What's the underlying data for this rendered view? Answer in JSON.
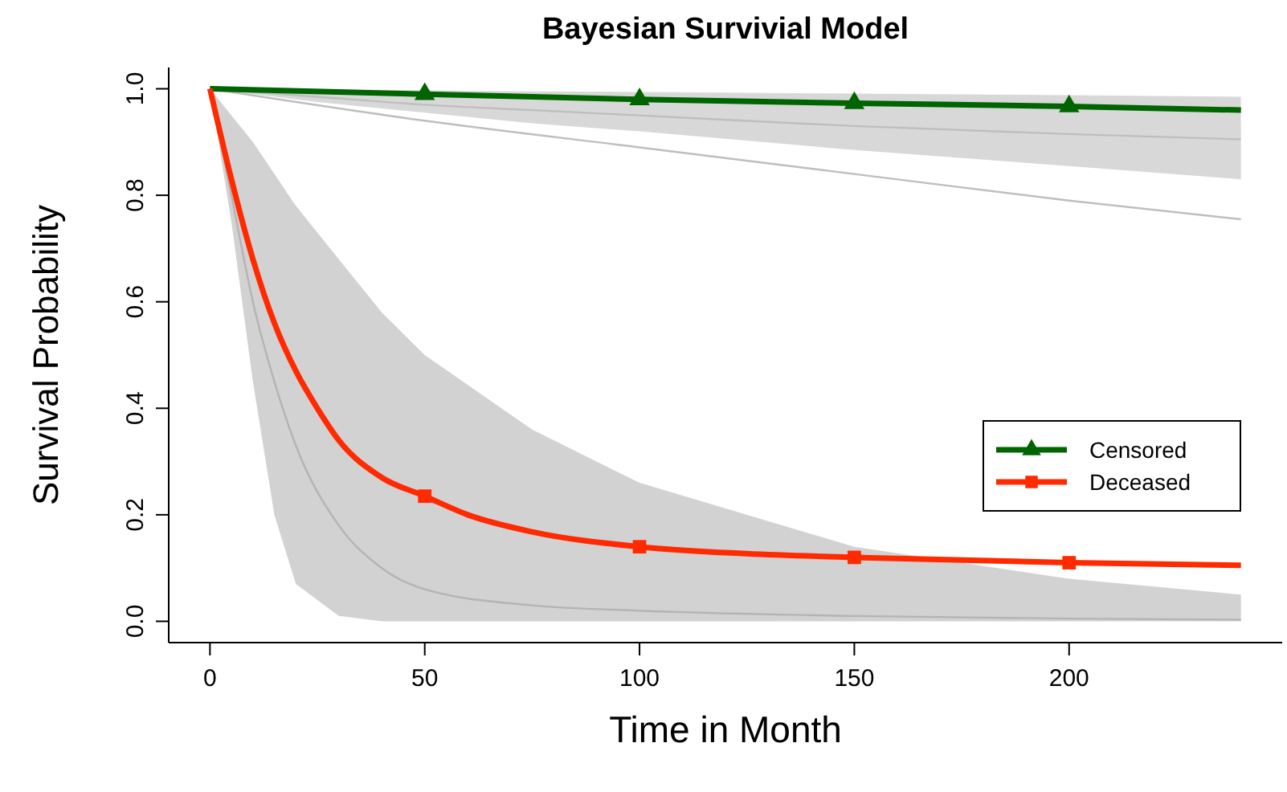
{
  "chart_data": {
    "type": "line",
    "title": "Bayesian Survivial Model",
    "xlabel": "Time in Month",
    "ylabel": "Survival Probability",
    "xlim": [
      -9.6,
      249.6
    ],
    "ylim": [
      -0.04,
      1.04
    ],
    "xticks": [
      0,
      50,
      100,
      150,
      200
    ],
    "yticks": [
      {
        "value": 0,
        "label": "0.0"
      },
      0.2,
      0.4,
      0.6,
      0.8,
      {
        "value": 1,
        "label": "1.0"
      }
    ],
    "grid": false,
    "legend": "right",
    "line_style": "solid",
    "series": [
      {
        "color": "#bebebe",
        "marker": "none",
        "x": [
          0,
          25,
          50,
          75,
          100,
          150,
          200,
          240
        ],
        "values": [
          1,
          0.985,
          0.97,
          0.96,
          0.95,
          0.93,
          0.915,
          0.905
        ],
        "lower": [
          1,
          0.975,
          0.955,
          0.935,
          0.92,
          0.885,
          0.855,
          0.83
        ],
        "upper": [
          1,
          0.998,
          0.997,
          0.995,
          0.994,
          0.991,
          0.988,
          0.985
        ]
      },
      {
        "color": "#bebebe",
        "marker": "none",
        "x": [
          0,
          50,
          100,
          150,
          200,
          240
        ],
        "values": [
          1,
          0.94,
          0.89,
          0.84,
          0.79,
          0.755
        ]
      },
      {
        "color": "#b4b4b4",
        "marker": "none",
        "x": [
          0,
          5,
          10,
          15,
          20,
          30,
          40,
          50,
          75,
          100,
          150,
          200,
          240
        ],
        "values": [
          1,
          0.8,
          0.6,
          0.45,
          0.33,
          0.18,
          0.1,
          0.06,
          0.03,
          0.02,
          0.01,
          0.005,
          0.003
        ],
        "lower": [
          1,
          0.75,
          0.45,
          0.2,
          0.07,
          0.01,
          0,
          0,
          0,
          0,
          0,
          0,
          0
        ],
        "upper": [
          1,
          0.95,
          0.9,
          0.84,
          0.78,
          0.68,
          0.58,
          0.5,
          0.36,
          0.26,
          0.14,
          0.08,
          0.05
        ]
      },
      {
        "name": "Censored",
        "color": "#006400",
        "marker": "none",
        "x": [
          0,
          50,
          100,
          150,
          200,
          240
        ],
        "values": [
          1,
          0.99,
          0.98,
          0.973,
          0.967,
          0.96
        ]
      },
      {
        "name": "Deceased",
        "color": "#ff2a00",
        "marker": "none",
        "x": [
          0,
          5,
          10,
          15,
          20,
          25,
          30,
          40,
          50,
          60,
          75,
          100,
          125,
          150,
          200,
          240
        ],
        "values": [
          1,
          0.83,
          0.68,
          0.56,
          0.47,
          0.4,
          0.34,
          0.27,
          0.235,
          0.2,
          0.168,
          0.14,
          0.127,
          0.12,
          0.11,
          0.105
        ]
      },
      {
        "type": "scatter",
        "color": "#006400",
        "marker": "triangle",
        "x": [
          50,
          100,
          150,
          200
        ],
        "values": [
          0.99,
          0.98,
          0.973,
          0.967
        ]
      },
      {
        "type": "scatter",
        "color": "#ff2a00",
        "marker": "square",
        "x": [
          50,
          100,
          150,
          200
        ],
        "values": [
          0.235,
          0.14,
          0.12,
          0.11
        ]
      }
    ]
  }
}
